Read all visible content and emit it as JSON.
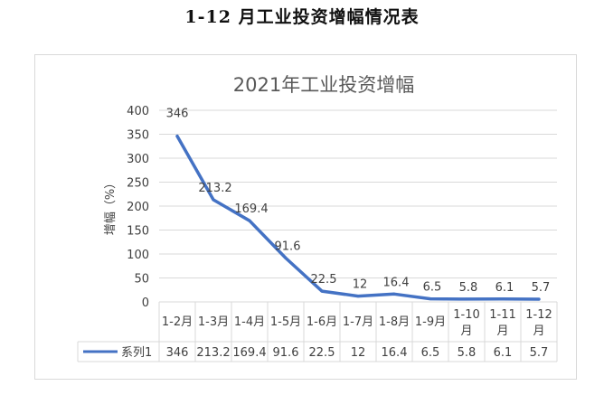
{
  "page": {
    "heading": "1-12 月工业投资增幅情况表"
  },
  "chart_data": {
    "type": "line",
    "title": "2021年工业投资增幅",
    "ylabel": "增幅（%）",
    "xlabel": "",
    "ylim": [
      0,
      400
    ],
    "yticks": [
      0,
      50,
      100,
      150,
      200,
      250,
      300,
      350,
      400
    ],
    "categories": [
      [
        "1-2月"
      ],
      [
        "1-3月"
      ],
      [
        "1-4月"
      ],
      [
        "1-5月"
      ],
      [
        "1-6月"
      ],
      [
        "1-7月"
      ],
      [
        "1-8月"
      ],
      [
        "1-9月"
      ],
      [
        "1-10",
        "月"
      ],
      [
        "1-11",
        "月"
      ],
      [
        "1-12",
        "月"
      ]
    ],
    "series": [
      {
        "name": "系列1",
        "values": [
          346,
          213.2,
          169.4,
          91.6,
          22.5,
          12,
          16.4,
          6.5,
          5.8,
          6.1,
          5.7
        ]
      }
    ],
    "data_labels": true,
    "data_table": true,
    "grid": "horizontal",
    "legend": "in data table",
    "colors": {
      "line": "#4472c4",
      "grid": "#d9d9d9",
      "text": "#404040",
      "title": "#595959"
    }
  }
}
